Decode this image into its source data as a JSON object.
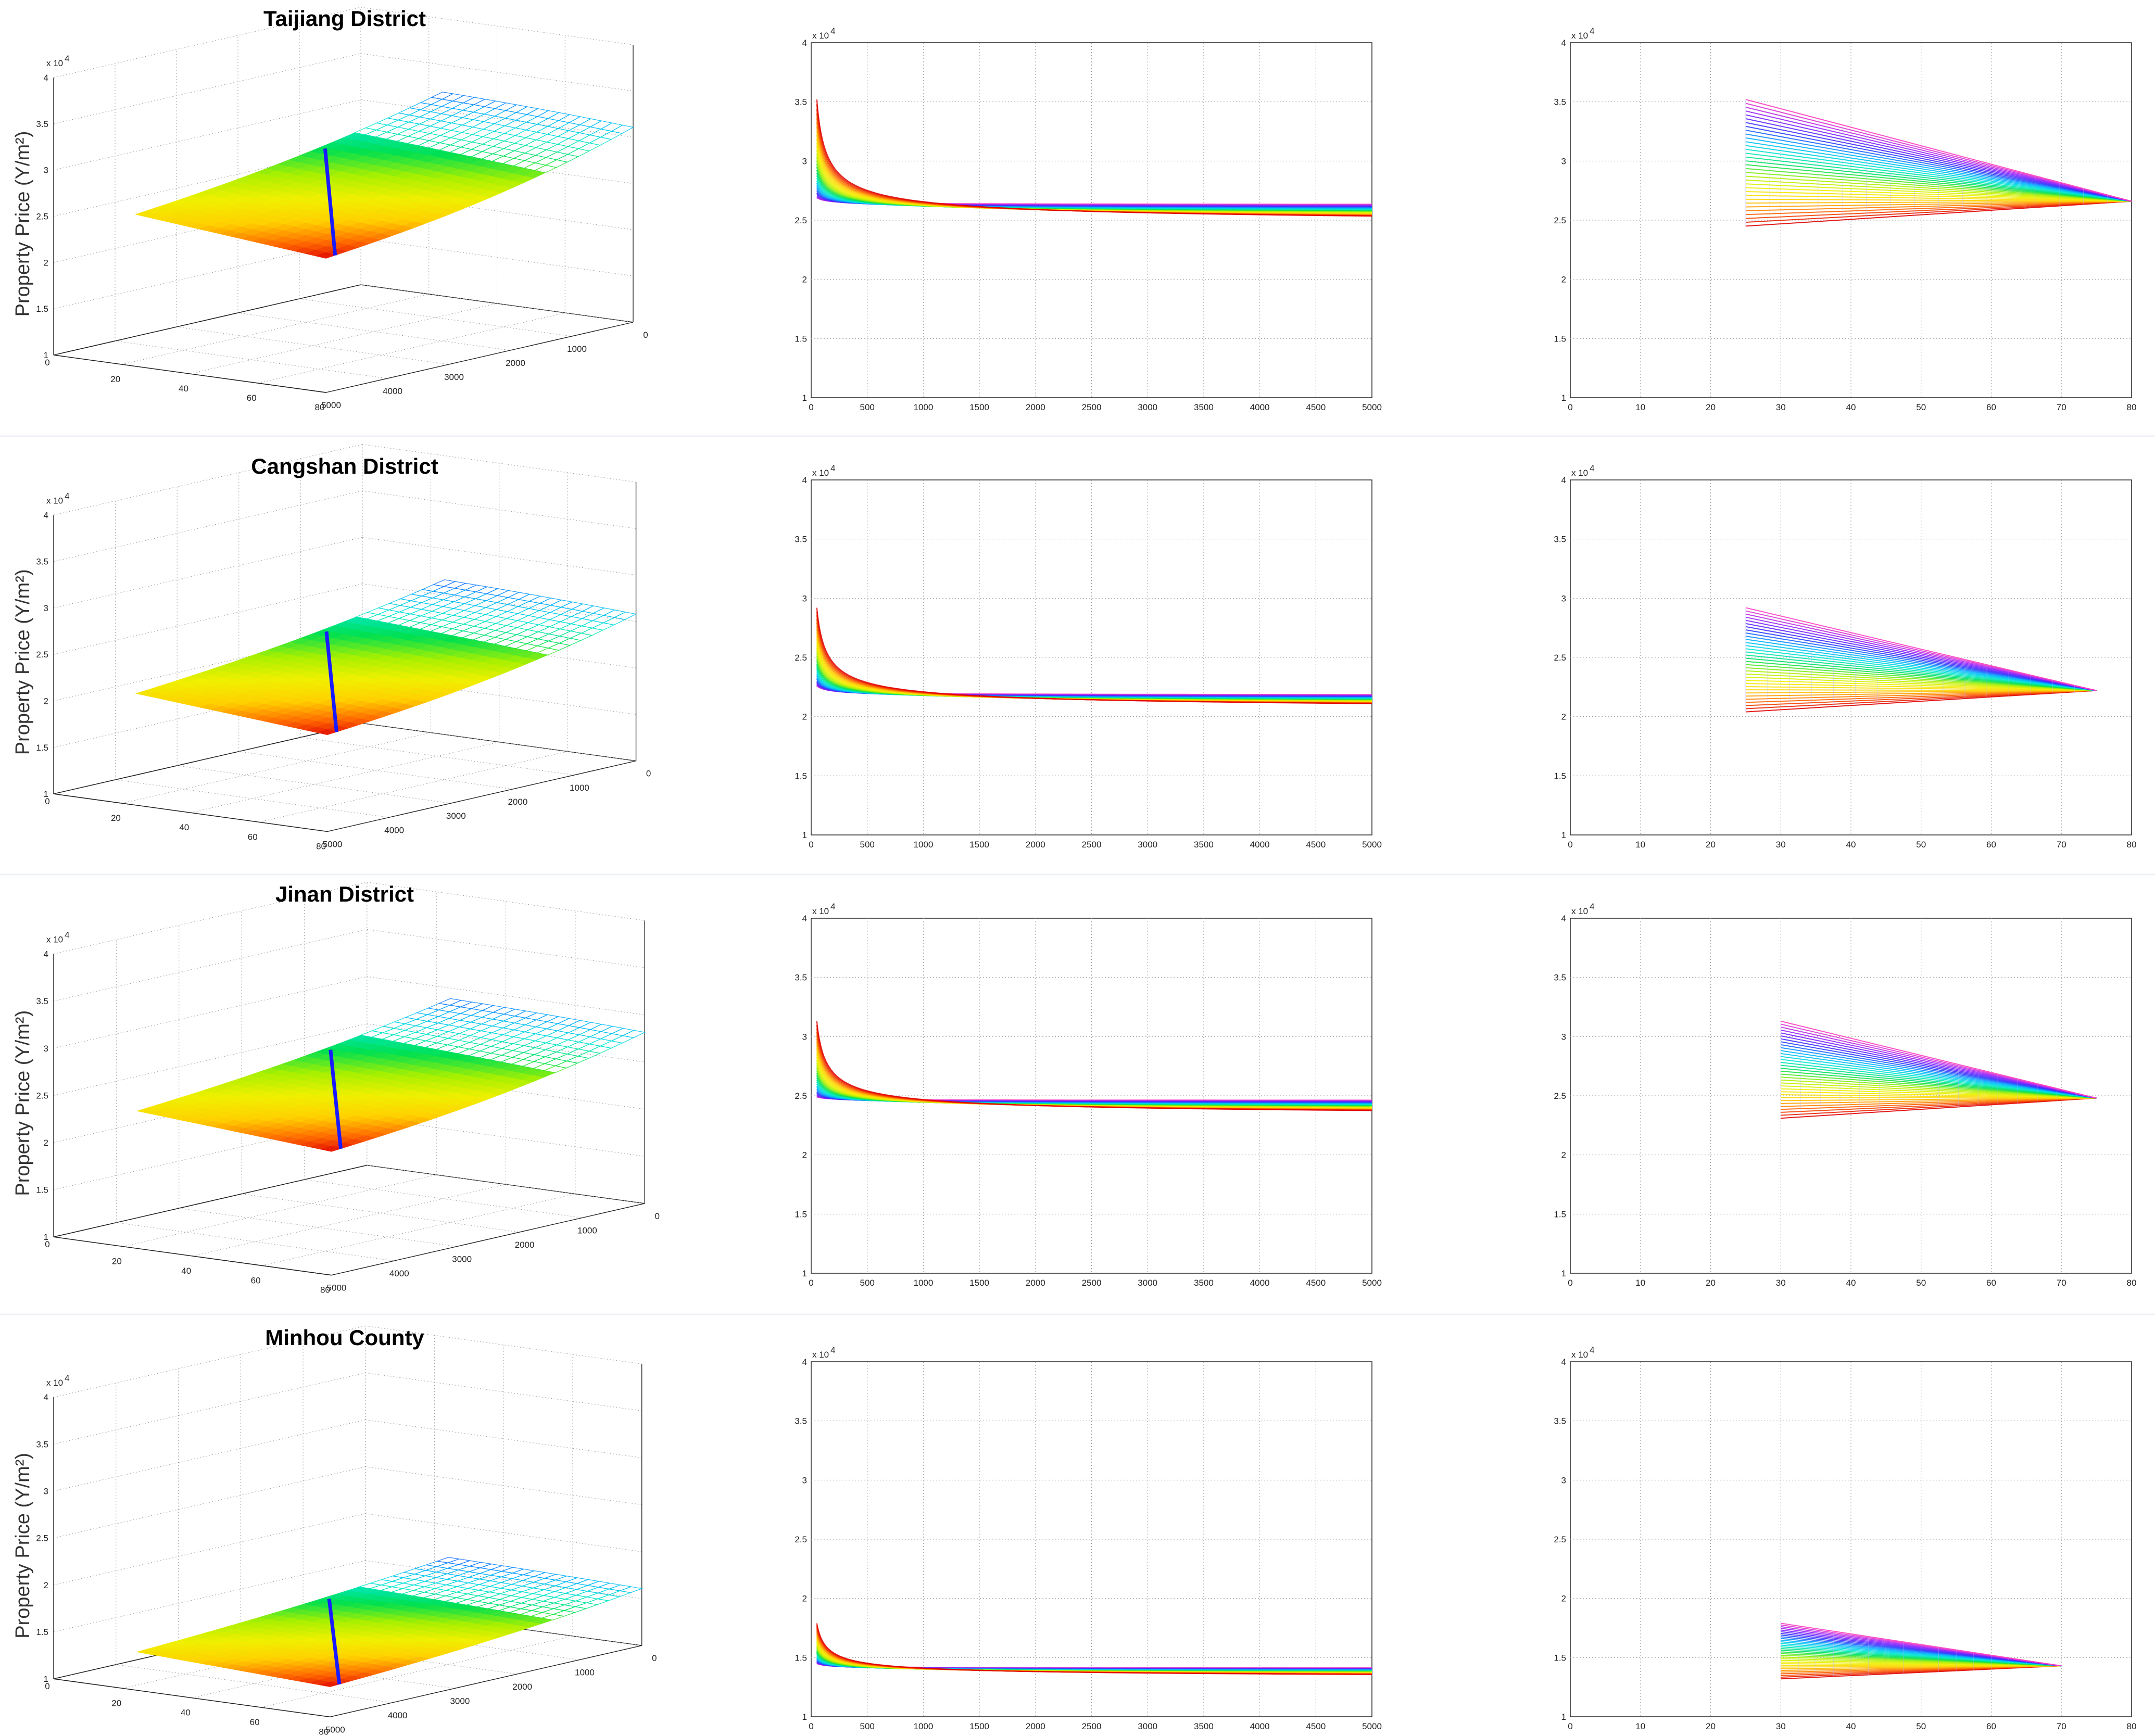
{
  "figure": {
    "ylabel": "Property Price (Y/m²)",
    "y_multiplier": "x 10",
    "y_exponent": "4"
  },
  "colors": {
    "spectrum": [
      "#e00000",
      "#ff6a00",
      "#ffd000",
      "#f0f000",
      "#a8f000",
      "#00e050",
      "#00e8d0",
      "#00b0ff",
      "#3030ff",
      "#9020ff",
      "#ff40c0"
    ],
    "regression_line": "#1a1aff",
    "grid": "#9a9a9a",
    "axis": "#222222"
  },
  "chart_data": [
    {
      "id": "taijiang",
      "title": "Taijiang District",
      "type": "surface-3d",
      "ylim": [
        1,
        4
      ],
      "yticks": [
        "1",
        "1.5",
        "2",
        "2.5",
        "3",
        "3.5",
        "4"
      ],
      "area_axis_ticks": [
        "0",
        "20",
        "40",
        "60",
        "80"
      ],
      "distance_axis_ticks": [
        "0",
        "1000",
        "2000",
        "3000",
        "4000",
        "5000"
      ],
      "series": [
        {
          "name": "distance-view",
          "type": "line-family",
          "x_range": [
            50,
            5000
          ],
          "ylim": [
            1,
            4
          ],
          "xticks": [
            "0",
            "500",
            "1000",
            "1500",
            "2000",
            "2500",
            "3000",
            "3500",
            "4000",
            "4500",
            "5000"
          ],
          "upper_start": 3.52,
          "lower_start": 2.69,
          "end_top": 2.63,
          "end_bottom": 2.45
        },
        {
          "name": "area-view",
          "type": "line-family",
          "x_range": [
            25,
            80
          ],
          "ylim": [
            1,
            4
          ],
          "xticks": [
            "0",
            "10",
            "20",
            "30",
            "40",
            "50",
            "60",
            "70",
            "80"
          ],
          "start_top": 3.52,
          "start_bottom": 2.45,
          "converge": 2.66
        }
      ]
    },
    {
      "id": "cangshan",
      "title": "Cangshan District",
      "type": "surface-3d",
      "ylim": [
        1,
        4
      ],
      "yticks": [
        "1",
        "1.5",
        "2",
        "2.5",
        "3",
        "3.5",
        "4"
      ],
      "area_axis_ticks": [
        "0",
        "20",
        "40",
        "60",
        "80"
      ],
      "distance_axis_ticks": [
        "0",
        "1000",
        "2000",
        "3000",
        "4000",
        "5000"
      ],
      "series": [
        {
          "name": "distance-view",
          "type": "line-family",
          "x_range": [
            50,
            5000
          ],
          "ylim": [
            1,
            4
          ],
          "xticks": [
            "0",
            "500",
            "1000",
            "1500",
            "2000",
            "2500",
            "3000",
            "3500",
            "4000",
            "4500",
            "5000"
          ],
          "upper_start": 2.92,
          "lower_start": 2.26,
          "end_top": 2.18,
          "end_bottom": 2.04
        },
        {
          "name": "area-view",
          "type": "line-family",
          "x_range": [
            25,
            75
          ],
          "ylim": [
            1,
            4
          ],
          "xticks": [
            "0",
            "10",
            "20",
            "30",
            "40",
            "50",
            "60",
            "70",
            "80"
          ],
          "start_top": 2.92,
          "start_bottom": 2.04,
          "converge": 2.22
        }
      ]
    },
    {
      "id": "jinan",
      "title": "Jinan District",
      "type": "surface-3d",
      "ylim": [
        1,
        4
      ],
      "yticks": [
        "1",
        "1.5",
        "2",
        "2.5",
        "3",
        "3.5",
        "4"
      ],
      "area_axis_ticks": [
        "0",
        "20",
        "40",
        "60",
        "80"
      ],
      "distance_axis_ticks": [
        "0",
        "1000",
        "2000",
        "3000",
        "4000",
        "5000"
      ],
      "series": [
        {
          "name": "distance-view",
          "type": "line-family",
          "x_range": [
            50,
            5000
          ],
          "ylim": [
            1,
            4
          ],
          "xticks": [
            "0",
            "500",
            "1000",
            "1500",
            "2000",
            "2500",
            "3000",
            "3500",
            "4000",
            "4500",
            "5000"
          ],
          "upper_start": 3.13,
          "lower_start": 2.49,
          "end_top": 2.46,
          "end_bottom": 2.31
        },
        {
          "name": "area-view",
          "type": "line-family",
          "x_range": [
            30,
            75
          ],
          "ylim": [
            1,
            4
          ],
          "xticks": [
            "0",
            "10",
            "20",
            "30",
            "40",
            "50",
            "60",
            "70",
            "80"
          ],
          "start_top": 3.13,
          "start_bottom": 2.31,
          "converge": 2.48
        }
      ]
    },
    {
      "id": "minhou",
      "title": "Minhou County",
      "type": "surface-3d",
      "ylim": [
        1,
        4
      ],
      "yticks": [
        "1",
        "1.5",
        "2",
        "2.5",
        "3",
        "3.5",
        "4"
      ],
      "area_axis_ticks": [
        "0",
        "20",
        "40",
        "60",
        "80"
      ],
      "distance_axis_ticks": [
        "0",
        "1000",
        "2000",
        "3000",
        "4000",
        "5000"
      ],
      "series": [
        {
          "name": "distance-view",
          "type": "line-family",
          "x_range": [
            50,
            5000
          ],
          "ylim": [
            1,
            4
          ],
          "xticks": [
            "0",
            "500",
            "1000",
            "1500",
            "2000",
            "2500",
            "3000",
            "3500",
            "4000",
            "4500",
            "5000"
          ],
          "upper_start": 1.79,
          "lower_start": 1.45,
          "end_top": 1.41,
          "end_bottom": 1.32
        },
        {
          "name": "area-view",
          "type": "line-family",
          "x_range": [
            30,
            70
          ],
          "ylim": [
            1,
            4
          ],
          "xticks": [
            "0",
            "10",
            "20",
            "30",
            "40",
            "50",
            "60",
            "70",
            "80"
          ],
          "start_top": 1.79,
          "start_bottom": 1.32,
          "converge": 1.43
        }
      ]
    }
  ]
}
